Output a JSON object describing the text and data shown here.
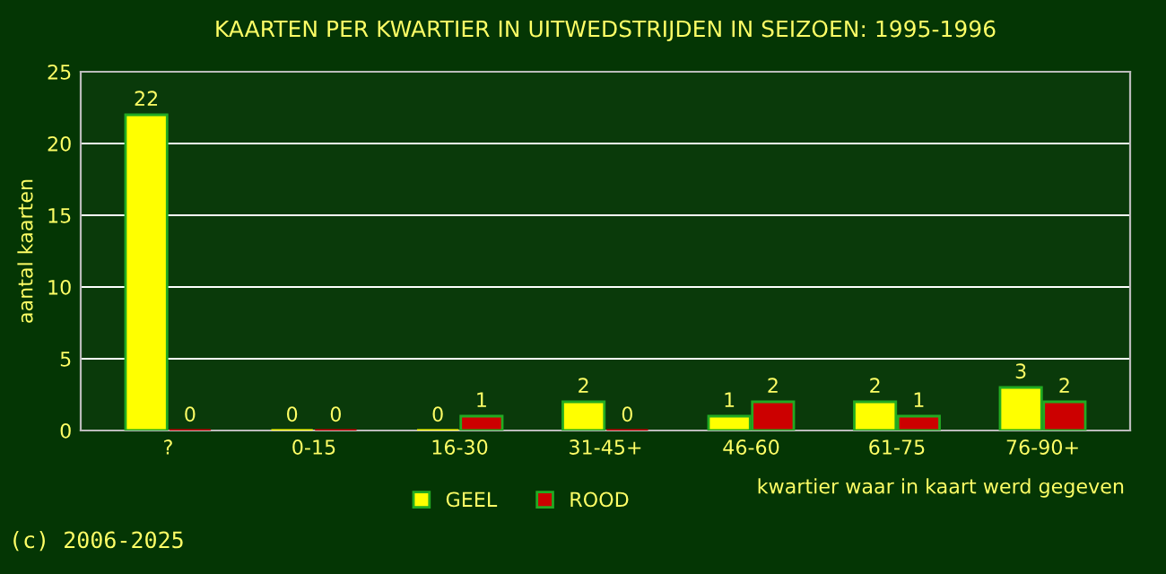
{
  "chart_data": {
    "type": "bar",
    "title": "KAARTEN PER KWARTIER IN UITWEDSTRIJDEN IN SEIZOEN: 1995-1996",
    "xlabel": "kwartier waar in kaart werd gegeven",
    "ylabel": "aantal kaarten",
    "categories": [
      "?",
      "0-15",
      "16-30",
      "31-45+",
      "46-60",
      "61-75",
      "76-90+"
    ],
    "series": [
      {
        "name": "GEEL",
        "color": "#ffff00",
        "values": [
          22,
          0,
          0,
          2,
          1,
          2,
          3
        ]
      },
      {
        "name": "ROOD",
        "color": "#cc0000",
        "values": [
          0,
          0,
          1,
          0,
          2,
          1,
          2
        ]
      }
    ],
    "ylim": [
      0,
      25
    ],
    "yticks": [
      0,
      5,
      10,
      15,
      20,
      25
    ],
    "grid": "y",
    "legend": "bottom",
    "data_labels": true,
    "annotations": [
      "(c) 2006-2025"
    ]
  }
}
